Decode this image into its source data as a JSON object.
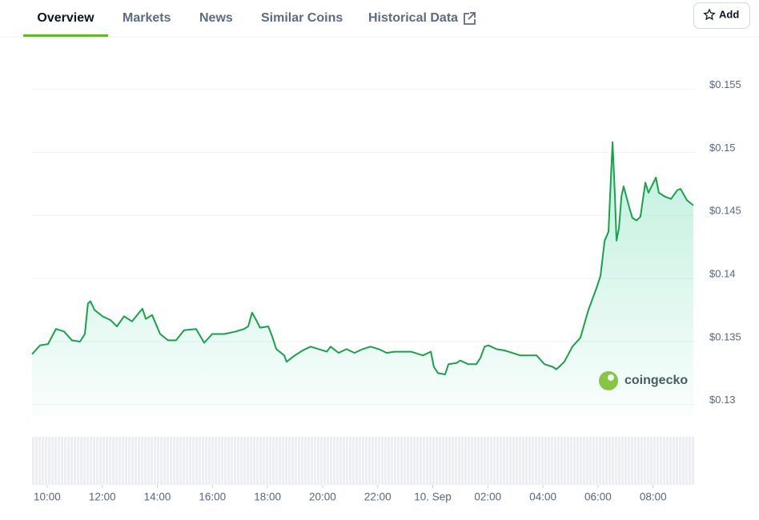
{
  "tabs": [
    "Overview",
    "Markets",
    "News",
    "Similar Coins",
    "Historical Data"
  ],
  "add_button": "Add",
  "watermark": "coingecko",
  "chart_data": {
    "type": "line",
    "color": "#16a34a",
    "x": [
      9.45,
      9.74,
      10.03,
      10.32,
      10.61,
      10.9,
      11.19,
      11.37,
      11.48,
      11.57,
      11.72,
      12.01,
      12.3,
      12.53,
      12.79,
      13.08,
      13.23,
      13.46,
      13.58,
      13.81,
      14.1,
      14.39,
      14.68,
      14.97,
      15.41,
      15.7,
      15.99,
      16.43,
      16.86,
      17.15,
      17.3,
      17.44,
      17.59,
      17.73,
      18.03,
      18.17,
      18.32,
      18.61,
      18.69,
      18.99,
      19.28,
      19.57,
      19.86,
      20.15,
      20.29,
      20.58,
      20.87,
      21.16,
      21.45,
      21.74,
      22.04,
      22.33,
      22.62,
      22.91,
      23.2,
      23.35,
      23.64,
      23.93,
      24.04,
      24.19,
      24.45,
      24.57,
      24.86,
      25.0,
      25.29,
      25.58,
      25.73,
      25.88,
      26.02,
      26.31,
      26.6,
      26.89,
      27.18,
      27.47,
      27.77,
      28.06,
      28.35,
      28.49,
      28.78,
      29.07,
      29.36,
      29.65,
      29.94,
      30.09,
      30.24,
      30.38,
      30.47,
      30.53,
      30.61,
      30.67,
      30.76,
      30.85,
      30.93,
      31.14,
      31.25,
      31.4,
      31.54,
      31.72,
      31.83,
      32.1,
      32.21,
      32.42,
      32.65,
      32.88,
      33.0,
      33.23,
      33.46
    ],
    "values": [
      0.134,
      0.1347,
      0.1348,
      0.136,
      0.1358,
      0.1351,
      0.135,
      0.1356,
      0.138,
      0.1382,
      0.1375,
      0.137,
      0.1367,
      0.1362,
      0.137,
      0.1366,
      0.137,
      0.1376,
      0.1368,
      0.1371,
      0.1356,
      0.1351,
      0.1351,
      0.1359,
      0.136,
      0.1349,
      0.1356,
      0.1356,
      0.1358,
      0.136,
      0.1362,
      0.1373,
      0.1367,
      0.1361,
      0.1362,
      0.1354,
      0.1344,
      0.1339,
      0.1334,
      0.1339,
      0.1343,
      0.1346,
      0.1344,
      0.1342,
      0.1346,
      0.1341,
      0.1344,
      0.1341,
      0.1344,
      0.1346,
      0.1344,
      0.1341,
      0.1342,
      0.1342,
      0.1342,
      0.1341,
      0.1339,
      0.1342,
      0.133,
      0.1325,
      0.1324,
      0.1332,
      0.1333,
      0.1335,
      0.1332,
      0.1332,
      0.1337,
      0.1346,
      0.1347,
      0.1344,
      0.1343,
      0.1341,
      0.1339,
      0.1339,
      0.1339,
      0.1332,
      0.133,
      0.1328,
      0.1334,
      0.1346,
      0.1353,
      0.1375,
      0.1392,
      0.1402,
      0.143,
      0.1437,
      0.1481,
      0.1508,
      0.1468,
      0.143,
      0.144,
      0.1465,
      0.1473,
      0.1456,
      0.1448,
      0.1446,
      0.1449,
      0.1476,
      0.1468,
      0.148,
      0.1468,
      0.1465,
      0.1463,
      0.147,
      0.1471,
      0.1462,
      0.1458
    ],
    "xlim": [
      9.45,
      33.52
    ],
    "ylim": [
      0.1291,
      0.157
    ],
    "xticks": [
      {
        "value": 10,
        "label": "10:00"
      },
      {
        "value": 12,
        "label": "12:00"
      },
      {
        "value": 14,
        "label": "14:00"
      },
      {
        "value": 16,
        "label": "16:00"
      },
      {
        "value": 18,
        "label": "18:00"
      },
      {
        "value": 20,
        "label": "20:00"
      },
      {
        "value": 22,
        "label": "22:00"
      },
      {
        "value": 24,
        "label": "10. Sep"
      },
      {
        "value": 26,
        "label": "02:00"
      },
      {
        "value": 28,
        "label": "04:00"
      },
      {
        "value": 30,
        "label": "06:00"
      },
      {
        "value": 32,
        "label": "08:00"
      }
    ],
    "yticks": [
      {
        "value": 0.13,
        "label": "$0.13"
      },
      {
        "value": 0.135,
        "label": "$0.135"
      },
      {
        "value": 0.14,
        "label": "$0.14"
      },
      {
        "value": 0.145,
        "label": "$0.145"
      },
      {
        "value": 0.15,
        "label": "$0.15"
      },
      {
        "value": 0.155,
        "label": "$0.155"
      }
    ],
    "grid": true
  }
}
